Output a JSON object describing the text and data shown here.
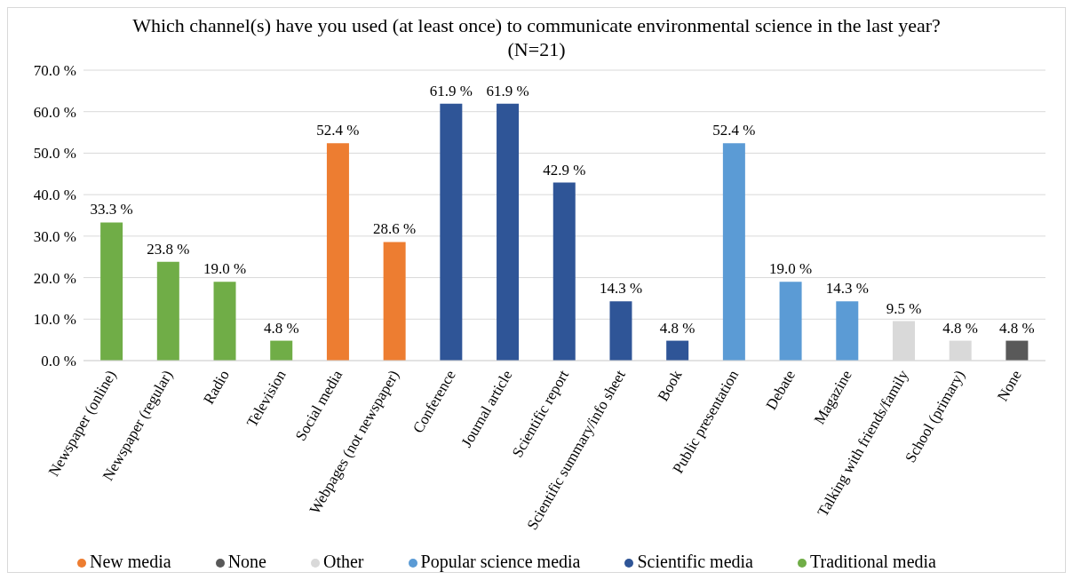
{
  "chart_data": {
    "type": "bar",
    "title": "Which channel(s) have you used (at least once) to communicate environmental science in the last year? (N=21)",
    "categories": [
      "Newspaper (online)",
      "Newspaper (regular)",
      "Radio",
      "Television",
      "Social media",
      "Webpages (not newspaper)",
      "Conference",
      "Journal article",
      "Scientific report",
      "Scientific summary/info sheet",
      "Book",
      "Public presentation",
      "Debate",
      "Magazine",
      "Talking with friends/family",
      "School (primary)",
      "None"
    ],
    "stacked": true,
    "series": [
      {
        "name": "Traditional media",
        "color": "#70ad47",
        "values": [
          33.3,
          23.8,
          19.0,
          4.8,
          null,
          null,
          null,
          null,
          null,
          null,
          null,
          null,
          null,
          null,
          null,
          null,
          null
        ],
        "value_labels": [
          "33.3 %",
          "23.8 %",
          "19.0 %",
          "4.8 %",
          null,
          null,
          null,
          null,
          null,
          null,
          null,
          null,
          null,
          null,
          null,
          null,
          null
        ]
      },
      {
        "name": "New media",
        "color": "#ed7d31",
        "values": [
          null,
          null,
          null,
          null,
          52.4,
          28.6,
          null,
          null,
          null,
          null,
          null,
          null,
          null,
          null,
          null,
          null,
          null
        ],
        "value_labels": [
          null,
          null,
          null,
          null,
          "52.4 %",
          "28.6 %",
          null,
          null,
          null,
          null,
          null,
          null,
          null,
          null,
          null,
          null,
          null
        ]
      },
      {
        "name": "Scientific media",
        "color": "#2f5597",
        "values": [
          null,
          null,
          null,
          null,
          null,
          null,
          61.9,
          61.9,
          42.9,
          14.3,
          4.8,
          null,
          null,
          null,
          null,
          null,
          null
        ],
        "value_labels": [
          null,
          null,
          null,
          null,
          null,
          null,
          "61.9 %",
          "61.9 %",
          "42.9 %",
          "14.3 %",
          "4.8 %",
          null,
          null,
          null,
          null,
          null,
          null
        ]
      },
      {
        "name": "Popular science media",
        "color": "#5b9bd5",
        "values": [
          null,
          null,
          null,
          null,
          null,
          null,
          null,
          null,
          null,
          null,
          null,
          52.4,
          19.0,
          14.3,
          null,
          null,
          null
        ],
        "value_labels": [
          null,
          null,
          null,
          null,
          null,
          null,
          null,
          null,
          null,
          null,
          null,
          "52.4 %",
          "19.0 %",
          "14.3 %",
          null,
          null,
          null
        ]
      },
      {
        "name": "Other",
        "color": "#d9d9d9",
        "values": [
          null,
          null,
          null,
          null,
          null,
          null,
          null,
          null,
          null,
          null,
          null,
          null,
          null,
          null,
          9.5,
          4.8,
          null
        ],
        "value_labels": [
          null,
          null,
          null,
          null,
          null,
          null,
          null,
          null,
          null,
          null,
          null,
          null,
          null,
          null,
          "9.5 %",
          "4.8 %",
          null
        ]
      },
      {
        "name": "None",
        "color": "#595959",
        "values": [
          null,
          null,
          null,
          null,
          null,
          null,
          null,
          null,
          null,
          null,
          null,
          null,
          null,
          null,
          null,
          null,
          4.8
        ],
        "value_labels": [
          null,
          null,
          null,
          null,
          null,
          null,
          null,
          null,
          null,
          null,
          null,
          null,
          null,
          null,
          null,
          null,
          "4.8 %"
        ]
      }
    ],
    "ylim": [
      0,
      70
    ],
    "yticks": [
      {
        "value": 0,
        "label": "0.0 %"
      },
      {
        "value": 10,
        "label": "10.0 %"
      },
      {
        "value": 20,
        "label": "20.0 %"
      },
      {
        "value": 30,
        "label": "30.0 %"
      },
      {
        "value": 40,
        "label": "40.0 %"
      },
      {
        "value": 50,
        "label": "50.0 %"
      },
      {
        "value": 60,
        "label": "60.0 %"
      },
      {
        "value": 70,
        "label": "70.0 %"
      }
    ],
    "grid": "y",
    "legend": "bottom"
  }
}
